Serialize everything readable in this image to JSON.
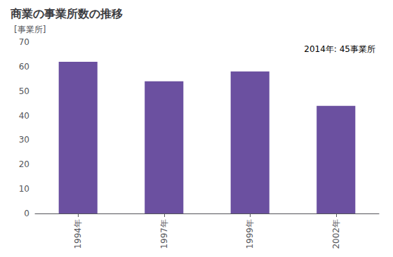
{
  "chart_data": {
    "type": "bar",
    "title": "商業の事業所数の推移",
    "ylabel": "[事業所]",
    "annotation": "2014年: 45事業所",
    "categories": [
      "1994年",
      "1997年",
      "1999年",
      "2002年"
    ],
    "values": [
      62,
      54,
      58,
      44
    ],
    "color": "#6b50a0",
    "ylim": [
      0,
      70
    ],
    "yticks": [
      0,
      10,
      20,
      30,
      40,
      50,
      60,
      70
    ],
    "grid": false
  }
}
